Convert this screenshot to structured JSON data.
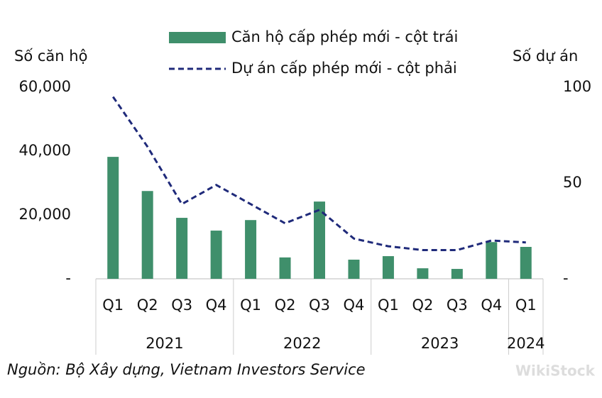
{
  "chart_data": {
    "type": "bar-line",
    "y_label": "Số căn hộ",
    "y2_label": "Số dự án",
    "groups": [
      {
        "label": "2021",
        "quarters": [
          "Q1",
          "Q2",
          "Q3",
          "Q4"
        ]
      },
      {
        "label": "2022",
        "quarters": [
          "Q1",
          "Q2",
          "Q3",
          "Q4"
        ]
      },
      {
        "label": "2023",
        "quarters": [
          "Q1",
          "Q2",
          "Q3",
          "Q4"
        ]
      },
      {
        "label": "2024",
        "quarters": [
          "Q1"
        ]
      }
    ],
    "series": [
      {
        "name": "Căn hộ cấp phép mới - cột trái",
        "type": "bar",
        "color": "#3f8f6b",
        "axis": "y",
        "values": [
          38200,
          27500,
          19100,
          15100,
          18400,
          6700,
          24200,
          6000,
          7100,
          3300,
          3100,
          11500,
          10000
        ]
      },
      {
        "name": "Dự án cấp phép mới - cột phải",
        "type": "line",
        "color": "#1f2a7a",
        "dashed": true,
        "axis": "y2",
        "values": [
          95,
          69,
          39,
          49,
          39,
          29,
          36,
          21,
          17,
          15,
          15,
          20,
          19
        ]
      }
    ],
    "ylim": [
      0,
      60000
    ],
    "yticks": [
      {
        "value": 0,
        "label": "-"
      },
      {
        "value": 20000,
        "label": "20,000"
      },
      {
        "value": 40000,
        "label": "40,000"
      },
      {
        "value": 60000,
        "label": "60,000"
      }
    ],
    "y2lim": [
      0,
      100
    ],
    "y2ticks": [
      {
        "value": 0,
        "label": "-"
      },
      50,
      100
    ],
    "source": "Nguồn: Bộ Xây dựng, Vietnam Investors Service",
    "watermark": "WikiStock"
  }
}
